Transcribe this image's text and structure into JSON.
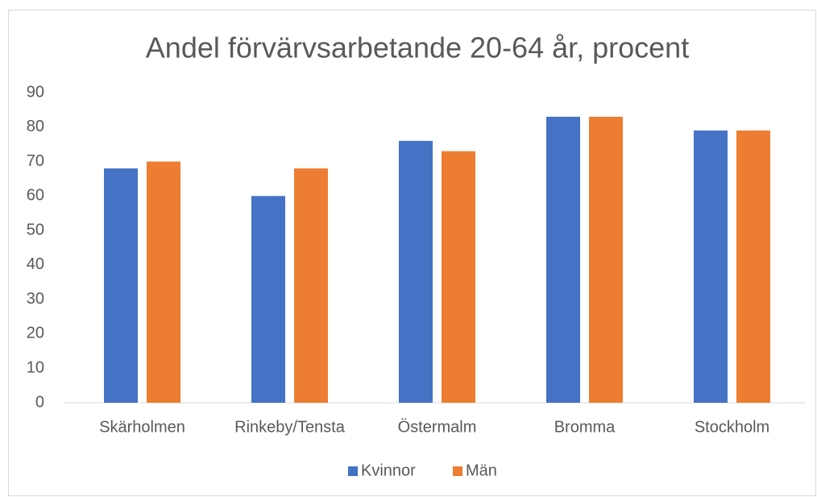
{
  "chart_data": {
    "type": "bar",
    "title": "Andel förvärvsarbetande 20-64 år, procent",
    "categories": [
      "Skärholmen",
      "Rinkeby/Tensta",
      "Östermalm",
      "Bromma",
      "Stockholm"
    ],
    "series": [
      {
        "name": "Kvinnor",
        "color": "#4472c4",
        "values": [
          68,
          60,
          76,
          83,
          79
        ]
      },
      {
        "name": "Män",
        "color": "#ed7d31",
        "values": [
          70,
          68,
          73,
          83,
          79
        ]
      }
    ],
    "ylim": [
      0,
      90
    ],
    "yticks": [
      0,
      10,
      20,
      30,
      40,
      50,
      60,
      70,
      80,
      90
    ],
    "grid": false,
    "legend": "bottom"
  }
}
